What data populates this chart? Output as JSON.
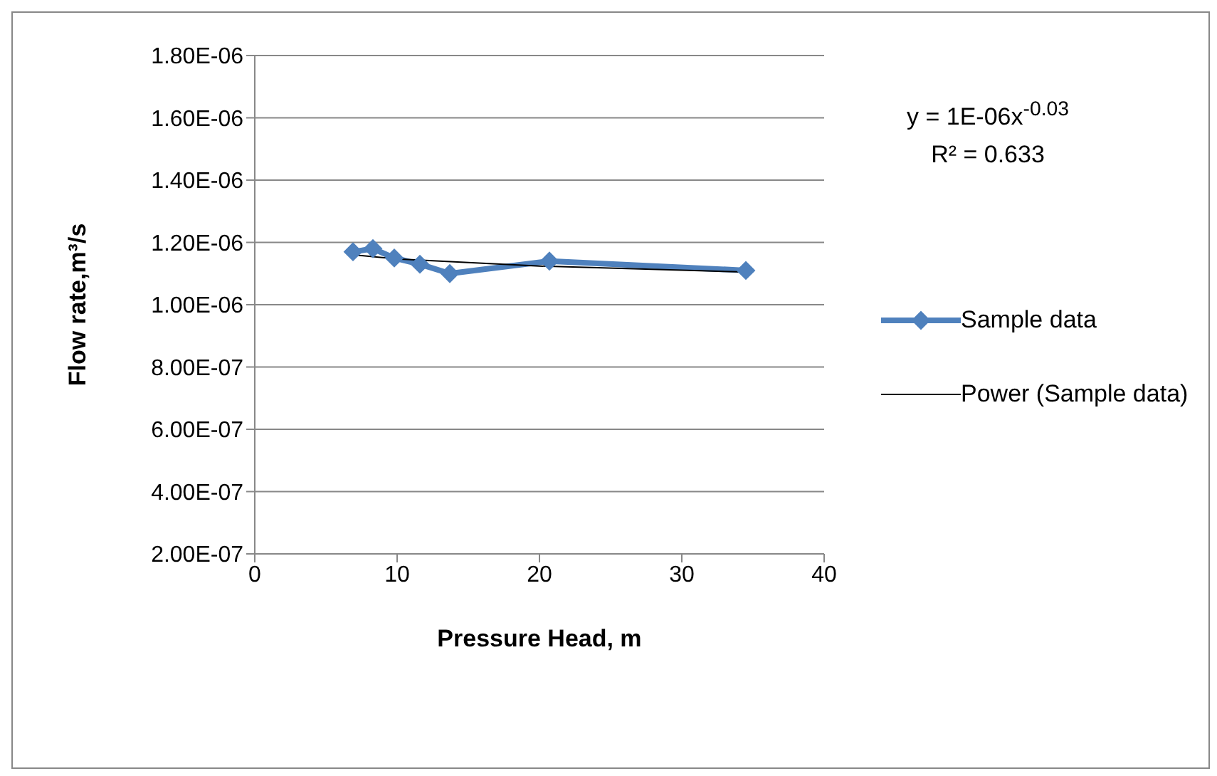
{
  "chart_data": {
    "type": "line",
    "xlabel": "Pressure Head, m",
    "ylabel": "Flow rate,m³/s",
    "xlim": [
      0,
      40
    ],
    "xticks": [
      0,
      10,
      20,
      30,
      40
    ],
    "ylim": [
      2e-07,
      1.8e-06
    ],
    "yticks": [
      {
        "value": 2e-07,
        "label": "2.00E-07"
      },
      {
        "value": 4e-07,
        "label": "4.00E-07"
      },
      {
        "value": 6e-07,
        "label": "6.00E-07"
      },
      {
        "value": 8e-07,
        "label": "8.00E-07"
      },
      {
        "value": 1e-06,
        "label": "1.00E-06"
      },
      {
        "value": 1.2e-06,
        "label": "1.20E-06"
      },
      {
        "value": 1.4e-06,
        "label": "1.40E-06"
      },
      {
        "value": 1.6e-06,
        "label": "1.60E-06"
      },
      {
        "value": 1.8e-06,
        "label": "1.80E-06"
      }
    ],
    "grid": "y",
    "legend": "right",
    "marker": "diamond",
    "series": [
      {
        "name": "Sample data",
        "color": "#4f81bd",
        "x": [
          6.9,
          8.3,
          9.8,
          11.6,
          13.7,
          20.7,
          34.5
        ],
        "values": [
          1.17e-06,
          1.18e-06,
          1.15e-06,
          1.13e-06,
          1.1e-06,
          1.14e-06,
          1.11e-06
        ]
      },
      {
        "name": "Power (Sample data)",
        "type": "line",
        "color": "#000000",
        "marker": "none",
        "x": [
          6.9,
          10,
          20,
          34.5
        ],
        "values": [
          1.16e-06,
          1.147e-06,
          1.124e-06,
          1.105e-06
        ]
      }
    ],
    "annotations": [
      "y = 1E-06x$^{-0.03}$",
      "R² = 0.633"
    ]
  }
}
